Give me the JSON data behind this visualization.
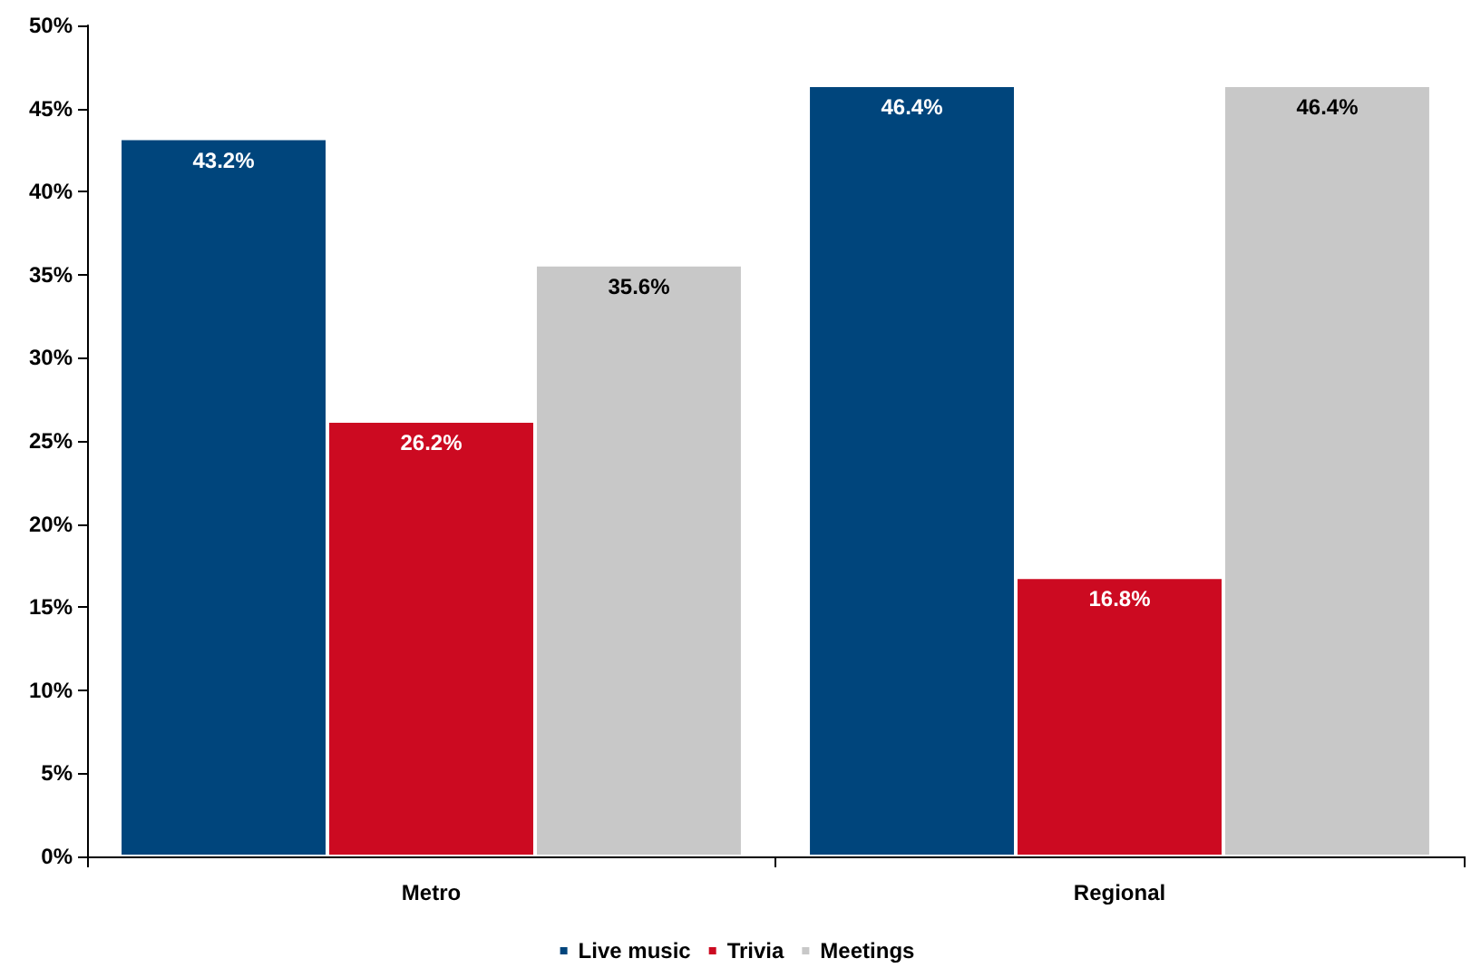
{
  "chart_data": {
    "type": "bar",
    "categories": [
      "Metro",
      "Regional"
    ],
    "series": [
      {
        "name": "Live music",
        "color": "#00457c",
        "values": [
          43.2,
          46.4
        ],
        "value_labels": [
          "43.2%",
          "46.4%"
        ]
      },
      {
        "name": "Trivia",
        "color": "#cc0a21",
        "values": [
          26.2,
          16.8
        ],
        "value_labels": [
          "26.2%",
          "16.8%"
        ]
      },
      {
        "name": "Meetings",
        "color": "#c8c8c8",
        "values": [
          35.6,
          46.4
        ],
        "value_labels": [
          "35.6%",
          "46.4%"
        ]
      }
    ],
    "ylim": [
      0,
      50
    ],
    "yticks": [
      {
        "value": 0,
        "label": "0%"
      },
      {
        "value": 5,
        "label": "5%"
      },
      {
        "value": 10,
        "label": "10%"
      },
      {
        "value": 15,
        "label": "15%"
      },
      {
        "value": 20,
        "label": "20%"
      },
      {
        "value": 25,
        "label": "25%"
      },
      {
        "value": 30,
        "label": "30%"
      },
      {
        "value": 35,
        "label": "35%"
      },
      {
        "value": 40,
        "label": "40%"
      },
      {
        "value": 45,
        "label": "45%"
      },
      {
        "value": 50,
        "label": "50%"
      }
    ],
    "grid": false,
    "legend": "bottom"
  }
}
